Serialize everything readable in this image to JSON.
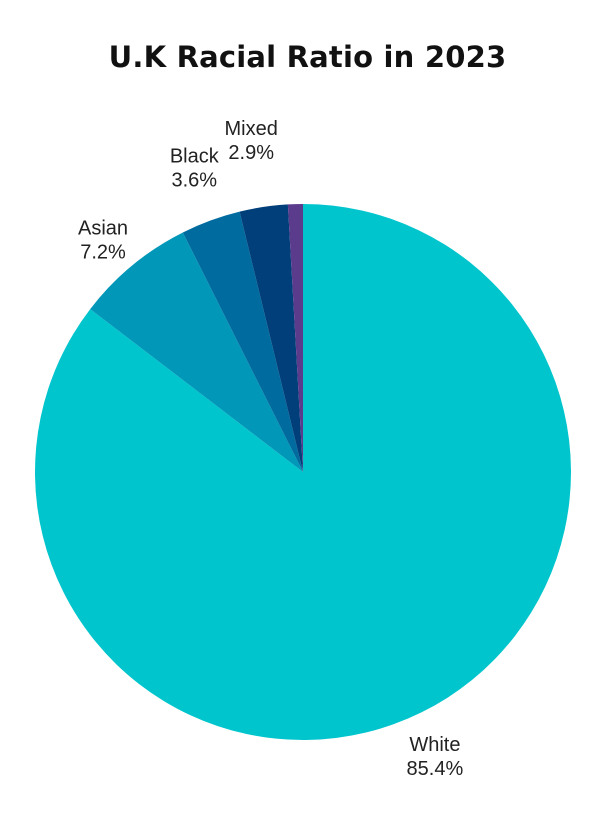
{
  "chart_data": {
    "type": "pie",
    "title": "U.K Racial Ratio in 2023",
    "start_angle_deg": 0,
    "direction": "clockwise",
    "slices": [
      {
        "label": "White",
        "value": 85.4,
        "value_label": "85.4%",
        "color": "#00c5cd"
      },
      {
        "label": "Asian",
        "value": 7.2,
        "value_label": "7.2%",
        "color": "#0097b9"
      },
      {
        "label": "Black",
        "value": 3.6,
        "value_label": "3.6%",
        "color": "#006b9f"
      },
      {
        "label": "Mixed",
        "value": 2.9,
        "value_label": "2.9%",
        "color": "#003f7a"
      },
      {
        "label": "",
        "value": 0.9,
        "value_label": "",
        "color": "#5b3b8c"
      }
    ],
    "legend": "none"
  }
}
